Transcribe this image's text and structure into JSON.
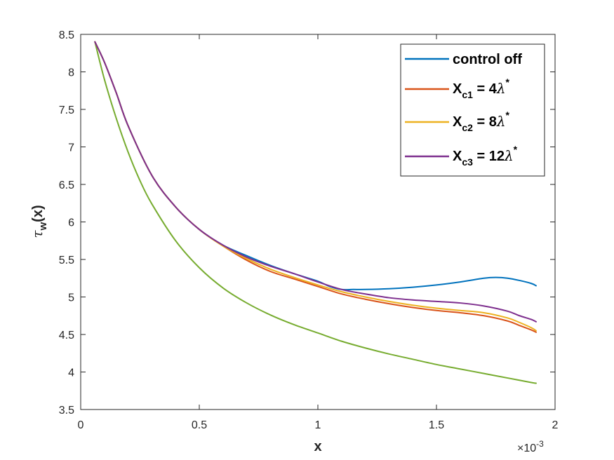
{
  "chart_data": {
    "type": "line",
    "xlabel": "x",
    "ylabel_main": "τ",
    "ylabel_sub": "w",
    "ylabel_rest": "(x)",
    "x_exponent_label": "×10",
    "x_exponent_power": "-3",
    "xlim": [
      0,
      2
    ],
    "ylim": [
      3.5,
      8.5
    ],
    "x_ticks": [
      0,
      0.5,
      1,
      1.5,
      2
    ],
    "x_tick_labels": [
      "0",
      "0.5",
      "1",
      "1.5",
      "2"
    ],
    "y_ticks": [
      3.5,
      4,
      4.5,
      5,
      5.5,
      6,
      6.5,
      7,
      7.5,
      8,
      8.5
    ],
    "y_tick_labels": [
      "3.5",
      "4",
      "4.5",
      "5",
      "5.5",
      "6",
      "6.5",
      "7",
      "7.5",
      "8",
      "8.5"
    ],
    "grid": false,
    "legend_position": "top-right",
    "series": [
      {
        "name": "control off",
        "color": "#0072BD",
        "x": [
          0.06,
          0.1,
          0.15,
          0.2,
          0.3,
          0.4,
          0.5,
          0.6,
          0.7,
          0.8,
          0.9,
          1.0,
          1.05,
          1.1,
          1.15,
          1.2,
          1.3,
          1.4,
          1.5,
          1.6,
          1.7,
          1.75,
          1.8,
          1.85,
          1.9,
          1.92
        ],
        "y": [
          8.4,
          8.13,
          7.72,
          7.28,
          6.62,
          6.2,
          5.9,
          5.69,
          5.55,
          5.42,
          5.31,
          5.21,
          5.14,
          5.1,
          5.1,
          5.1,
          5.11,
          5.13,
          5.16,
          5.2,
          5.25,
          5.26,
          5.25,
          5.22,
          5.18,
          5.15
        ]
      },
      {
        "name": "X_c1 = 4λ*",
        "legend_main": "X",
        "legend_sub": "c1",
        "legend_mid": " = 4",
        "legend_greek": "λ",
        "legend_sup": "*",
        "color": "#D95319",
        "x": [
          0.06,
          0.1,
          0.15,
          0.2,
          0.3,
          0.4,
          0.5,
          0.6,
          0.7,
          0.8,
          0.9,
          1.0,
          1.1,
          1.2,
          1.3,
          1.4,
          1.5,
          1.6,
          1.7,
          1.8,
          1.85,
          1.9,
          1.92
        ],
        "y": [
          8.4,
          8.13,
          7.72,
          7.28,
          6.62,
          6.2,
          5.9,
          5.68,
          5.49,
          5.34,
          5.24,
          5.14,
          5.04,
          4.97,
          4.91,
          4.86,
          4.82,
          4.79,
          4.75,
          4.68,
          4.62,
          4.56,
          4.53
        ]
      },
      {
        "name": "X_c2 = 8λ*",
        "legend_main": "X",
        "legend_sub": "c2",
        "legend_mid": " = 8",
        "legend_greek": "λ",
        "legend_sup": "*",
        "color": "#EDB120",
        "x": [
          0.06,
          0.1,
          0.15,
          0.2,
          0.3,
          0.4,
          0.5,
          0.6,
          0.7,
          0.8,
          0.9,
          1.0,
          1.1,
          1.2,
          1.3,
          1.4,
          1.5,
          1.6,
          1.7,
          1.8,
          1.85,
          1.9,
          1.92
        ],
        "y": [
          8.4,
          8.13,
          7.72,
          7.28,
          6.62,
          6.2,
          5.9,
          5.68,
          5.51,
          5.37,
          5.26,
          5.16,
          5.07,
          5.0,
          4.94,
          4.89,
          4.85,
          4.82,
          4.79,
          4.72,
          4.66,
          4.59,
          4.55
        ]
      },
      {
        "name": "X_c3 = 12λ*",
        "legend_main": "X",
        "legend_sub": "c3",
        "legend_mid": " = 12",
        "legend_greek": "λ",
        "legend_sup": "*",
        "color": "#7E2F8E",
        "x": [
          0.06,
          0.1,
          0.15,
          0.2,
          0.3,
          0.4,
          0.5,
          0.6,
          0.7,
          0.8,
          0.9,
          1.0,
          1.1,
          1.2,
          1.3,
          1.4,
          1.5,
          1.6,
          1.7,
          1.8,
          1.85,
          1.9,
          1.92
        ],
        "y": [
          8.4,
          8.13,
          7.72,
          7.28,
          6.62,
          6.2,
          5.9,
          5.69,
          5.53,
          5.41,
          5.31,
          5.2,
          5.1,
          5.04,
          4.99,
          4.96,
          4.94,
          4.92,
          4.88,
          4.81,
          4.75,
          4.7,
          4.67
        ]
      },
      {
        "name": "",
        "color": "#77AC30",
        "x": [
          0.06,
          0.1,
          0.15,
          0.2,
          0.25,
          0.3,
          0.4,
          0.5,
          0.6,
          0.7,
          0.8,
          0.9,
          1.0,
          1.1,
          1.2,
          1.3,
          1.4,
          1.5,
          1.6,
          1.7,
          1.8,
          1.9,
          1.92
        ],
        "y": [
          8.4,
          7.9,
          7.38,
          6.93,
          6.55,
          6.24,
          5.75,
          5.39,
          5.12,
          4.92,
          4.76,
          4.63,
          4.52,
          4.41,
          4.32,
          4.24,
          4.17,
          4.1,
          4.04,
          3.98,
          3.92,
          3.86,
          3.85
        ]
      }
    ]
  }
}
